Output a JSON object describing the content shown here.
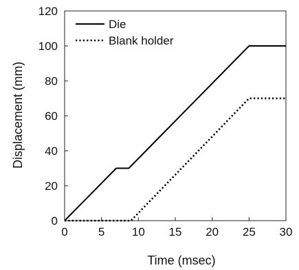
{
  "chart_data": {
    "type": "line",
    "title": "",
    "xlabel": "Time (msec)",
    "ylabel": "Displacement (mm)",
    "xlim": [
      0,
      30
    ],
    "ylim": [
      0,
      120
    ],
    "xticks": [
      0,
      5,
      10,
      15,
      20,
      25,
      30
    ],
    "yticks": [
      0,
      20,
      40,
      60,
      80,
      100,
      120
    ],
    "grid": false,
    "legend_position": "top-left",
    "series": [
      {
        "name": "Die",
        "style": "solid",
        "color": "#000000",
        "x": [
          0,
          7,
          8.7,
          25,
          30
        ],
        "y": [
          0,
          30,
          30,
          100,
          100
        ]
      },
      {
        "name": "Blank holder",
        "style": "dotted",
        "color": "#000000",
        "x": [
          0,
          9,
          25,
          30
        ],
        "y": [
          0,
          0,
          70,
          70
        ]
      }
    ]
  }
}
